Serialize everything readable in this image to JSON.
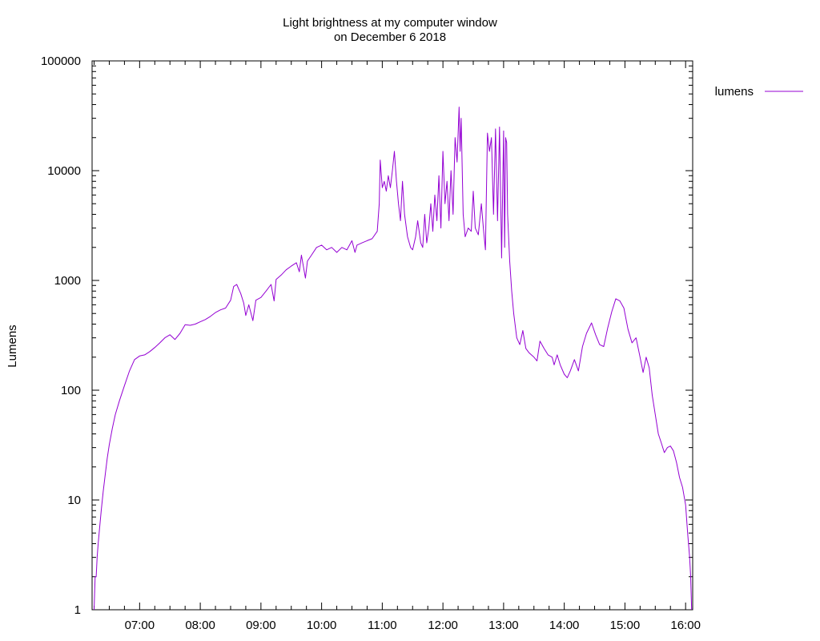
{
  "chart_data": {
    "type": "line",
    "title_lines": [
      "Light brightness at my computer window",
      "on December 6 2018"
    ],
    "xlabel": "",
    "ylabel": "Lumens",
    "y_scale": "log",
    "ylim": [
      1,
      100000
    ],
    "xlim": [
      "06:13",
      "16:07"
    ],
    "x_ticks": [
      "07:00",
      "08:00",
      "09:00",
      "10:00",
      "11:00",
      "12:00",
      "13:00",
      "14:00",
      "15:00",
      "16:00"
    ],
    "y_ticks": [
      "1",
      "10",
      "100",
      "1000",
      "10000",
      "100000"
    ],
    "grid": false,
    "legend_position": "top-right",
    "series": [
      {
        "name": "lumens",
        "color": "#9400d3",
        "points": [
          [
            "06:15",
            1
          ],
          [
            "06:16",
            2
          ],
          [
            "06:17",
            2
          ],
          [
            "06:18",
            3
          ],
          [
            "06:19",
            4
          ],
          [
            "06:20",
            5
          ],
          [
            "06:22",
            8
          ],
          [
            "06:24",
            12
          ],
          [
            "06:26",
            17
          ],
          [
            "06:28",
            24
          ],
          [
            "06:30",
            32
          ],
          [
            "06:33",
            45
          ],
          [
            "06:36",
            60
          ],
          [
            "06:40",
            80
          ],
          [
            "06:45",
            110
          ],
          [
            "06:50",
            150
          ],
          [
            "06:55",
            190
          ],
          [
            "07:00",
            205
          ],
          [
            "07:05",
            210
          ],
          [
            "07:10",
            225
          ],
          [
            "07:15",
            245
          ],
          [
            "07:20",
            270
          ],
          [
            "07:25",
            300
          ],
          [
            "07:30",
            320
          ],
          [
            "07:35",
            290
          ],
          [
            "07:40",
            330
          ],
          [
            "07:45",
            395
          ],
          [
            "07:50",
            390
          ],
          [
            "07:55",
            400
          ],
          [
            "08:00",
            420
          ],
          [
            "08:05",
            440
          ],
          [
            "08:10",
            470
          ],
          [
            "08:15",
            510
          ],
          [
            "08:20",
            540
          ],
          [
            "08:25",
            560
          ],
          [
            "08:30",
            660
          ],
          [
            "08:33",
            880
          ],
          [
            "08:36",
            920
          ],
          [
            "08:40",
            760
          ],
          [
            "08:43",
            620
          ],
          [
            "08:45",
            480
          ],
          [
            "08:48",
            600
          ],
          [
            "08:52",
            430
          ],
          [
            "08:55",
            660
          ],
          [
            "09:00",
            700
          ],
          [
            "09:05",
            800
          ],
          [
            "09:10",
            920
          ],
          [
            "09:13",
            650
          ],
          [
            "09:15",
            1020
          ],
          [
            "09:20",
            1120
          ],
          [
            "09:25",
            1250
          ],
          [
            "09:30",
            1350
          ],
          [
            "09:35",
            1450
          ],
          [
            "09:38",
            1200
          ],
          [
            "09:40",
            1700
          ],
          [
            "09:44",
            1050
          ],
          [
            "09:46",
            1500
          ],
          [
            "09:50",
            1700
          ],
          [
            "09:55",
            2000
          ],
          [
            "10:00",
            2100
          ],
          [
            "10:05",
            1900
          ],
          [
            "10:10",
            2000
          ],
          [
            "10:15",
            1800
          ],
          [
            "10:20",
            2000
          ],
          [
            "10:25",
            1900
          ],
          [
            "10:30",
            2300
          ],
          [
            "10:33",
            1800
          ],
          [
            "10:35",
            2100
          ],
          [
            "10:40",
            2200
          ],
          [
            "10:45",
            2300
          ],
          [
            "10:50",
            2400
          ],
          [
            "10:55",
            2800
          ],
          [
            "10:57",
            5000
          ],
          [
            "10:58",
            12500
          ],
          [
            "11:00",
            7000
          ],
          [
            "11:02",
            8000
          ],
          [
            "11:04",
            6500
          ],
          [
            "11:06",
            9000
          ],
          [
            "11:08",
            7000
          ],
          [
            "11:10",
            10000
          ],
          [
            "11:12",
            15000
          ],
          [
            "11:14",
            8000
          ],
          [
            "11:16",
            5000
          ],
          [
            "11:18",
            3500
          ],
          [
            "11:20",
            8000
          ],
          [
            "11:22",
            4000
          ],
          [
            "11:25",
            2500
          ],
          [
            "11:28",
            2000
          ],
          [
            "11:30",
            1900
          ],
          [
            "11:33",
            2500
          ],
          [
            "11:35",
            3500
          ],
          [
            "11:38",
            2200
          ],
          [
            "11:40",
            2000
          ],
          [
            "11:42",
            4000
          ],
          [
            "11:44",
            2200
          ],
          [
            "11:46",
            3000
          ],
          [
            "11:48",
            5000
          ],
          [
            "11:50",
            2800
          ],
          [
            "11:52",
            6000
          ],
          [
            "11:54",
            3500
          ],
          [
            "11:56",
            9000
          ],
          [
            "11:58",
            3000
          ],
          [
            "12:00",
            15000
          ],
          [
            "12:02",
            5000
          ],
          [
            "12:04",
            8000
          ],
          [
            "12:06",
            3500
          ],
          [
            "12:08",
            10000
          ],
          [
            "12:10",
            4000
          ],
          [
            "12:12",
            20000
          ],
          [
            "12:14",
            12000
          ],
          [
            "12:16",
            38000
          ],
          [
            "12:17",
            15000
          ],
          [
            "12:18",
            30000
          ],
          [
            "12:20",
            4000
          ],
          [
            "12:22",
            2500
          ],
          [
            "12:25",
            3000
          ],
          [
            "12:28",
            2800
          ],
          [
            "12:30",
            6500
          ],
          [
            "12:32",
            3000
          ],
          [
            "12:35",
            2600
          ],
          [
            "12:38",
            5000
          ],
          [
            "12:40",
            3000
          ],
          [
            "12:42",
            1900
          ],
          [
            "12:44",
            22000
          ],
          [
            "12:46",
            15000
          ],
          [
            "12:48",
            20000
          ],
          [
            "12:50",
            4000
          ],
          [
            "12:52",
            24000
          ],
          [
            "12:54",
            3500
          ],
          [
            "12:56",
            25000
          ],
          [
            "12:58",
            1600
          ],
          [
            "13:00",
            23000
          ],
          [
            "13:01",
            2000
          ],
          [
            "13:02",
            20000
          ],
          [
            "13:03",
            18000
          ],
          [
            "13:04",
            4000
          ],
          [
            "13:06",
            1500
          ],
          [
            "13:08",
            800
          ],
          [
            "13:10",
            500
          ],
          [
            "13:13",
            300
          ],
          [
            "13:16",
            260
          ],
          [
            "13:19",
            350
          ],
          [
            "13:22",
            240
          ],
          [
            "13:25",
            220
          ],
          [
            "13:30",
            200
          ],
          [
            "13:33",
            185
          ],
          [
            "13:36",
            280
          ],
          [
            "13:40",
            240
          ],
          [
            "13:44",
            210
          ],
          [
            "13:48",
            200
          ],
          [
            "13:50",
            170
          ],
          [
            "13:53",
            210
          ],
          [
            "13:56",
            170
          ],
          [
            "14:00",
            140
          ],
          [
            "14:03",
            130
          ],
          [
            "14:06",
            150
          ],
          [
            "14:10",
            190
          ],
          [
            "14:14",
            150
          ],
          [
            "14:18",
            250
          ],
          [
            "14:22",
            330
          ],
          [
            "14:27",
            410
          ],
          [
            "14:31",
            320
          ],
          [
            "14:35",
            260
          ],
          [
            "14:39",
            250
          ],
          [
            "14:43",
            370
          ],
          [
            "14:47",
            520
          ],
          [
            "14:51",
            680
          ],
          [
            "14:55",
            650
          ],
          [
            "14:59",
            560
          ],
          [
            "15:03",
            360
          ],
          [
            "15:07",
            270
          ],
          [
            "15:11",
            300
          ],
          [
            "15:15",
            200
          ],
          [
            "15:18",
            145
          ],
          [
            "15:21",
            200
          ],
          [
            "15:24",
            160
          ],
          [
            "15:27",
            90
          ],
          [
            "15:30",
            60
          ],
          [
            "15:33",
            40
          ],
          [
            "15:36",
            33
          ],
          [
            "15:39",
            27
          ],
          [
            "15:42",
            30
          ],
          [
            "15:45",
            31
          ],
          [
            "15:48",
            28
          ],
          [
            "15:51",
            22
          ],
          [
            "15:54",
            16
          ],
          [
            "15:57",
            13
          ],
          [
            "16:00",
            9
          ],
          [
            "16:02",
            5
          ],
          [
            "16:04",
            3
          ],
          [
            "16:05",
            2
          ],
          [
            "16:06",
            1
          ]
        ]
      }
    ]
  }
}
